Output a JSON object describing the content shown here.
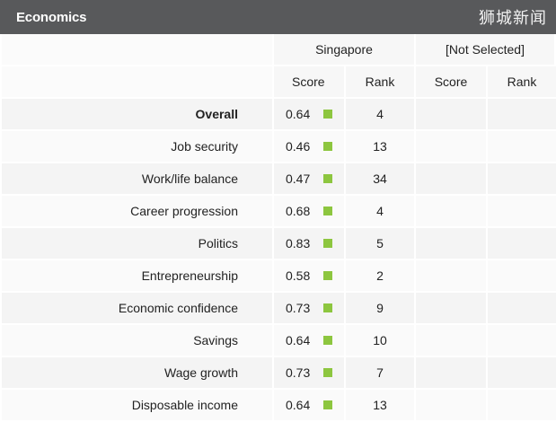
{
  "header": {
    "title": "Economics",
    "watermark": "狮城新闻"
  },
  "columns": {
    "country": "Singapore",
    "not_selected": "[Not Selected]",
    "score": "Score",
    "rank": "Rank",
    "ns_score": "Score",
    "ns_rank": "Rank"
  },
  "colors": {
    "header_bg": "#58595b",
    "score_marker": "#8dc63f"
  },
  "rows": [
    {
      "label": "Overall",
      "score": "0.64",
      "rank": "4"
    },
    {
      "label": "Job security",
      "score": "0.46",
      "rank": "13"
    },
    {
      "label": "Work/life balance",
      "score": "0.47",
      "rank": "34"
    },
    {
      "label": "Career progression",
      "score": "0.68",
      "rank": "4"
    },
    {
      "label": "Politics",
      "score": "0.83",
      "rank": "5"
    },
    {
      "label": "Entrepreneurship",
      "score": "0.58",
      "rank": "2"
    },
    {
      "label": "Economic confidence",
      "score": "0.73",
      "rank": "9"
    },
    {
      "label": "Savings",
      "score": "0.64",
      "rank": "10"
    },
    {
      "label": "Wage growth",
      "score": "0.73",
      "rank": "7"
    },
    {
      "label": "Disposable income",
      "score": "0.64",
      "rank": "13"
    }
  ]
}
